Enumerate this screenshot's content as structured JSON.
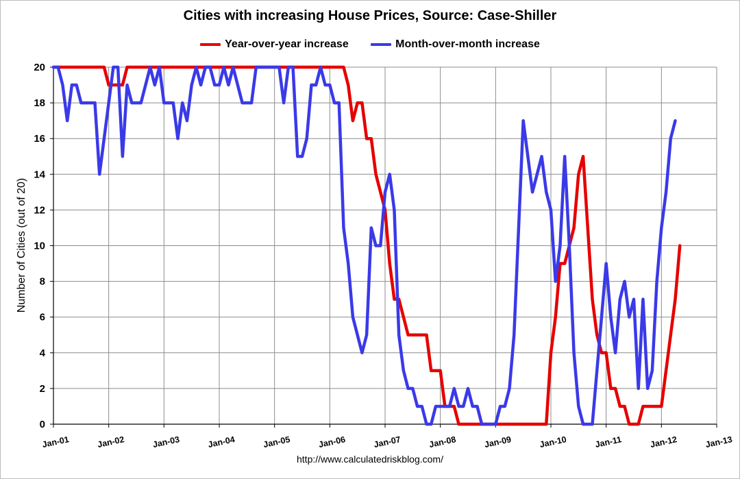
{
  "chart_data": {
    "type": "line",
    "title": "Cities with increasing House Prices, Source: Case-Shiller",
    "xlabel": "",
    "ylabel": "Number of Cities (out of 20)",
    "ylim": [
      0,
      20
    ],
    "yticks": [
      0,
      2,
      4,
      6,
      8,
      10,
      12,
      14,
      16,
      18,
      20
    ],
    "xlim": [
      "Jan-01",
      "Jan-13"
    ],
    "xticks": [
      "Jan-01",
      "Jan-02",
      "Jan-03",
      "Jan-04",
      "Jan-05",
      "Jan-06",
      "Jan-07",
      "Jan-08",
      "Jan-09",
      "Jan-10",
      "Jan-11",
      "Jan-12",
      "Jan-13"
    ],
    "grid": true,
    "legend_position": "top",
    "series": [
      {
        "name": "Year-over-year increase",
        "color": "#e60000",
        "points": [
          [
            "Jan-01",
            20
          ],
          [
            "Dec-01",
            20
          ],
          [
            "Jan-02",
            19
          ],
          [
            "Apr-02",
            19
          ],
          [
            "May-02",
            20
          ],
          [
            "Apr-06",
            20
          ],
          [
            "May-06",
            19
          ],
          [
            "Jun-06",
            17
          ],
          [
            "Jul-06",
            18
          ],
          [
            "Aug-06",
            18
          ],
          [
            "Sep-06",
            16
          ],
          [
            "Oct-06",
            16
          ],
          [
            "Nov-06",
            14
          ],
          [
            "Dec-06",
            13
          ],
          [
            "Jan-07",
            12
          ],
          [
            "Feb-07",
            9
          ],
          [
            "Mar-07",
            7
          ],
          [
            "Apr-07",
            7
          ],
          [
            "May-07",
            6
          ],
          [
            "Jun-07",
            5
          ],
          [
            "Jul-07",
            5
          ],
          [
            "Oct-07",
            5
          ],
          [
            "Nov-07",
            3
          ],
          [
            "Jan-08",
            3
          ],
          [
            "Feb-08",
            1
          ],
          [
            "Apr-08",
            1
          ],
          [
            "May-08",
            0
          ],
          [
            "Dec-09",
            0
          ],
          [
            "Jan-10",
            4
          ],
          [
            "Feb-10",
            6
          ],
          [
            "Mar-10",
            9
          ],
          [
            "Apr-10",
            9
          ],
          [
            "May-10",
            10
          ],
          [
            "Jun-10",
            11
          ],
          [
            "Jul-10",
            14
          ],
          [
            "Aug-10",
            15
          ],
          [
            "Sep-10",
            11
          ],
          [
            "Oct-10",
            7
          ],
          [
            "Nov-10",
            5
          ],
          [
            "Dec-10",
            4
          ],
          [
            "Jan-11",
            4
          ],
          [
            "Feb-11",
            2
          ],
          [
            "Mar-11",
            2
          ],
          [
            "Apr-11",
            1
          ],
          [
            "May-11",
            1
          ],
          [
            "Jun-11",
            0
          ],
          [
            "Aug-11",
            0
          ],
          [
            "Sep-11",
            1
          ],
          [
            "Jan-12",
            1
          ],
          [
            "Feb-12",
            3
          ],
          [
            "Mar-12",
            5
          ],
          [
            "Apr-12",
            7
          ],
          [
            "May-12",
            10
          ]
        ]
      },
      {
        "name": "Month-over-month increase",
        "color": "#3a3ae8",
        "points": [
          [
            "Jan-01",
            20
          ],
          [
            "Feb-01",
            20
          ],
          [
            "Mar-01",
            19
          ],
          [
            "Apr-01",
            17
          ],
          [
            "May-01",
            19
          ],
          [
            "Jun-01",
            19
          ],
          [
            "Jul-01",
            18
          ],
          [
            "Aug-01",
            18
          ],
          [
            "Sep-01",
            18
          ],
          [
            "Oct-01",
            18
          ],
          [
            "Nov-01",
            14
          ],
          [
            "Dec-01",
            16
          ],
          [
            "Jan-02",
            18
          ],
          [
            "Feb-02",
            20
          ],
          [
            "Mar-02",
            20
          ],
          [
            "Apr-02",
            15
          ],
          [
            "May-02",
            19
          ],
          [
            "Jun-02",
            18
          ],
          [
            "Jul-02",
            18
          ],
          [
            "Aug-02",
            18
          ],
          [
            "Sep-02",
            19
          ],
          [
            "Oct-02",
            20
          ],
          [
            "Nov-02",
            19
          ],
          [
            "Dec-02",
            20
          ],
          [
            "Jan-03",
            18
          ],
          [
            "Feb-03",
            18
          ],
          [
            "Mar-03",
            18
          ],
          [
            "Apr-03",
            16
          ],
          [
            "May-03",
            18
          ],
          [
            "Jun-03",
            17
          ],
          [
            "Jul-03",
            19
          ],
          [
            "Aug-03",
            20
          ],
          [
            "Sep-03",
            19
          ],
          [
            "Oct-03",
            20
          ],
          [
            "Nov-03",
            20
          ],
          [
            "Dec-03",
            19
          ],
          [
            "Jan-04",
            19
          ],
          [
            "Feb-04",
            20
          ],
          [
            "Mar-04",
            19
          ],
          [
            "Apr-04",
            20
          ],
          [
            "May-04",
            19
          ],
          [
            "Jun-04",
            18
          ],
          [
            "Jul-04",
            18
          ],
          [
            "Aug-04",
            18
          ],
          [
            "Sep-04",
            20
          ],
          [
            "Oct-04",
            20
          ],
          [
            "Nov-04",
            20
          ],
          [
            "Dec-04",
            20
          ],
          [
            "Jan-05",
            20
          ],
          [
            "Feb-05",
            20
          ],
          [
            "Mar-05",
            18
          ],
          [
            "Apr-05",
            20
          ],
          [
            "May-05",
            20
          ],
          [
            "Jun-05",
            15
          ],
          [
            "Jul-05",
            15
          ],
          [
            "Aug-05",
            16
          ],
          [
            "Sep-05",
            19
          ],
          [
            "Oct-05",
            19
          ],
          [
            "Nov-05",
            20
          ],
          [
            "Dec-05",
            19
          ],
          [
            "Jan-06",
            19
          ],
          [
            "Feb-06",
            18
          ],
          [
            "Mar-06",
            18
          ],
          [
            "Apr-06",
            11
          ],
          [
            "May-06",
            9
          ],
          [
            "Jun-06",
            6
          ],
          [
            "Jul-06",
            5
          ],
          [
            "Aug-06",
            4
          ],
          [
            "Sep-06",
            5
          ],
          [
            "Oct-06",
            11
          ],
          [
            "Nov-06",
            10
          ],
          [
            "Dec-06",
            10
          ],
          [
            "Jan-07",
            13
          ],
          [
            "Feb-07",
            14
          ],
          [
            "Mar-07",
            12
          ],
          [
            "Apr-07",
            5
          ],
          [
            "May-07",
            3
          ],
          [
            "Jun-07",
            2
          ],
          [
            "Jul-07",
            2
          ],
          [
            "Aug-07",
            1
          ],
          [
            "Sep-07",
            1
          ],
          [
            "Oct-07",
            0
          ],
          [
            "Nov-07",
            0
          ],
          [
            "Dec-07",
            1
          ],
          [
            "Jan-08",
            1
          ],
          [
            "Feb-08",
            1
          ],
          [
            "Mar-08",
            1
          ],
          [
            "Apr-08",
            2
          ],
          [
            "May-08",
            1
          ],
          [
            "Jun-08",
            1
          ],
          [
            "Jul-08",
            2
          ],
          [
            "Aug-08",
            1
          ],
          [
            "Sep-08",
            1
          ],
          [
            "Oct-08",
            0
          ],
          [
            "Nov-08",
            0
          ],
          [
            "Dec-08",
            0
          ],
          [
            "Jan-09",
            0
          ],
          [
            "Feb-09",
            1
          ],
          [
            "Mar-09",
            1
          ],
          [
            "Apr-09",
            2
          ],
          [
            "May-09",
            5
          ],
          [
            "Jun-09",
            11
          ],
          [
            "Jul-09",
            17
          ],
          [
            "Aug-09",
            15
          ],
          [
            "Sep-09",
            13
          ],
          [
            "Oct-09",
            14
          ],
          [
            "Nov-09",
            15
          ],
          [
            "Dec-09",
            13
          ],
          [
            "Jan-10",
            12
          ],
          [
            "Feb-10",
            8
          ],
          [
            "Mar-10",
            10
          ],
          [
            "Apr-10",
            15
          ],
          [
            "May-10",
            10
          ],
          [
            "Jun-10",
            4
          ],
          [
            "Jul-10",
            1
          ],
          [
            "Aug-10",
            0
          ],
          [
            "Sep-10",
            0
          ],
          [
            "Oct-10",
            0
          ],
          [
            "Nov-10",
            3
          ],
          [
            "Dec-10",
            6
          ],
          [
            "Jan-11",
            9
          ],
          [
            "Feb-11",
            6
          ],
          [
            "Mar-11",
            4
          ],
          [
            "Apr-11",
            7
          ],
          [
            "May-11",
            8
          ],
          [
            "Jun-11",
            6
          ],
          [
            "Jul-11",
            7
          ],
          [
            "Aug-11",
            2
          ],
          [
            "Sep-11",
            7
          ],
          [
            "Oct-11",
            2
          ],
          [
            "Nov-11",
            3
          ],
          [
            "Dec-11",
            8
          ],
          [
            "Jan-12",
            11
          ],
          [
            "Feb-12",
            13
          ],
          [
            "Mar-12",
            16
          ],
          [
            "Apr-12",
            17
          ]
        ]
      }
    ]
  },
  "footer": {
    "url": "http://www.calculatedriskblog.com/"
  }
}
